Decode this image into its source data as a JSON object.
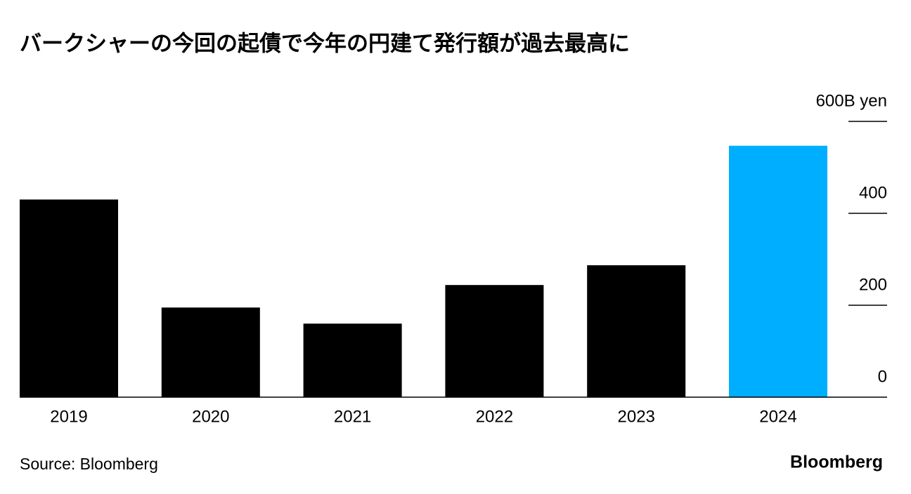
{
  "chart_data": {
    "type": "bar",
    "title": "バークシャーの今回の起債で今年の円建て発行額が過去最高に",
    "categories": [
      "2019",
      "2020",
      "2021",
      "2022",
      "2023",
      "2024"
    ],
    "values": [
      430,
      195,
      160,
      244,
      287,
      547
    ],
    "colors": [
      "#000000",
      "#000000",
      "#000000",
      "#000000",
      "#000000",
      "#00aeff"
    ],
    "ylim": [
      0,
      600
    ],
    "yticks": [
      0,
      200,
      400,
      {
        "value": 600,
        "label": "600B yen"
      }
    ],
    "source": "Source: Bloomberg",
    "logo": "Bloomberg"
  }
}
